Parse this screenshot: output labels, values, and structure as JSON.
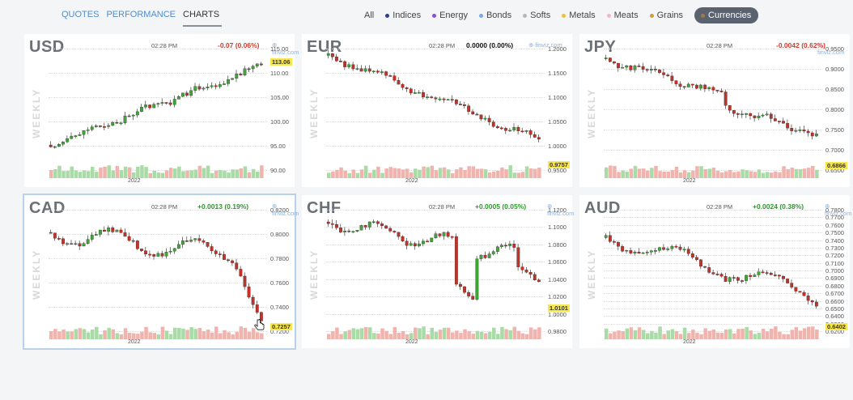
{
  "nav": [
    "QUOTES",
    "PERFORMANCE",
    "CHARTS"
  ],
  "filters": [
    {
      "label": "All",
      "color": ""
    },
    {
      "label": "Indices",
      "color": "#2b3f8c"
    },
    {
      "label": "Energy",
      "color": "#8a4fd1"
    },
    {
      "label": "Bonds",
      "color": "#7aa7e8"
    },
    {
      "label": "Softs",
      "color": "#b7b7b7"
    },
    {
      "label": "Metals",
      "color": "#e8c43c"
    },
    {
      "label": "Meats",
      "color": "#f2b7c9"
    },
    {
      "label": "Grains",
      "color": "#d69a3a"
    },
    {
      "label": "Currencies",
      "color": "#a07a4a"
    }
  ],
  "panels": [
    {
      "symbol": "USD",
      "time": "02:28 PM",
      "change": "-0.07 (0.06%)",
      "logo": "finviz.com",
      "axis": [
        "115.00",
        "110.00",
        "105.00",
        "100.00",
        "95.00",
        "90.00"
      ],
      "last": "113.06",
      "year": "2022"
    },
    {
      "symbol": "EUR",
      "time": "02:28 PM",
      "change": "0.0000 (0.00%)",
      "logo": "finviz.com",
      "axis": [
        "1.2000",
        "1.1500",
        "1.1000",
        "1.0500",
        "1.0000",
        "0.9500"
      ],
      "last": "0.9757",
      "year": "2022"
    },
    {
      "symbol": "JPY",
      "time": "02:28 PM",
      "change": "-0.0042 (0.62%)",
      "logo": "finviz.com",
      "axis": [
        "0.9500",
        "0.9000",
        "0.8500",
        "0.8000",
        "0.7500",
        "0.7000",
        "0.6500"
      ],
      "last": "0.6866",
      "year": "2022"
    },
    {
      "symbol": "CAD",
      "time": "02:28 PM",
      "change": "+0.0013 (0.19%)",
      "logo": "finviz.com",
      "axis": [
        "0.8200",
        "0.8000",
        "0.7800",
        "0.7600",
        "0.7400",
        "0.7200"
      ],
      "last": "0.7257",
      "year": "2022"
    },
    {
      "symbol": "CHF",
      "time": "02:28 PM",
      "change": "+0.0005 (0.05%)",
      "logo": "finviz.com",
      "axis": [
        "1.1200",
        "1.1000",
        "1.0800",
        "1.0600",
        "1.0400",
        "1.0200",
        "1.0000",
        "0.9800"
      ],
      "last": "1.0101",
      "year": "2022"
    },
    {
      "symbol": "AUD",
      "time": "02:28 PM",
      "change": "+0.0024 (0.38%)",
      "logo": "finviz.com",
      "axis": [
        "0.7800",
        "0.7700",
        "0.7600",
        "0.7500",
        "0.7400",
        "0.7300",
        "0.7200",
        "0.7100",
        "0.7000",
        "0.6900",
        "0.6800",
        "0.6700",
        "0.6600",
        "0.6500",
        "0.6400",
        "0.6300",
        "0.6200"
      ],
      "last": "0.6402",
      "year": "2022"
    }
  ],
  "weekly_label": "WEEKLY",
  "colors": {
    "up": "#3fa535",
    "down": "#c43126",
    "volume_up": "#a9dba6",
    "volume_down": "#f1b3ad"
  }
}
